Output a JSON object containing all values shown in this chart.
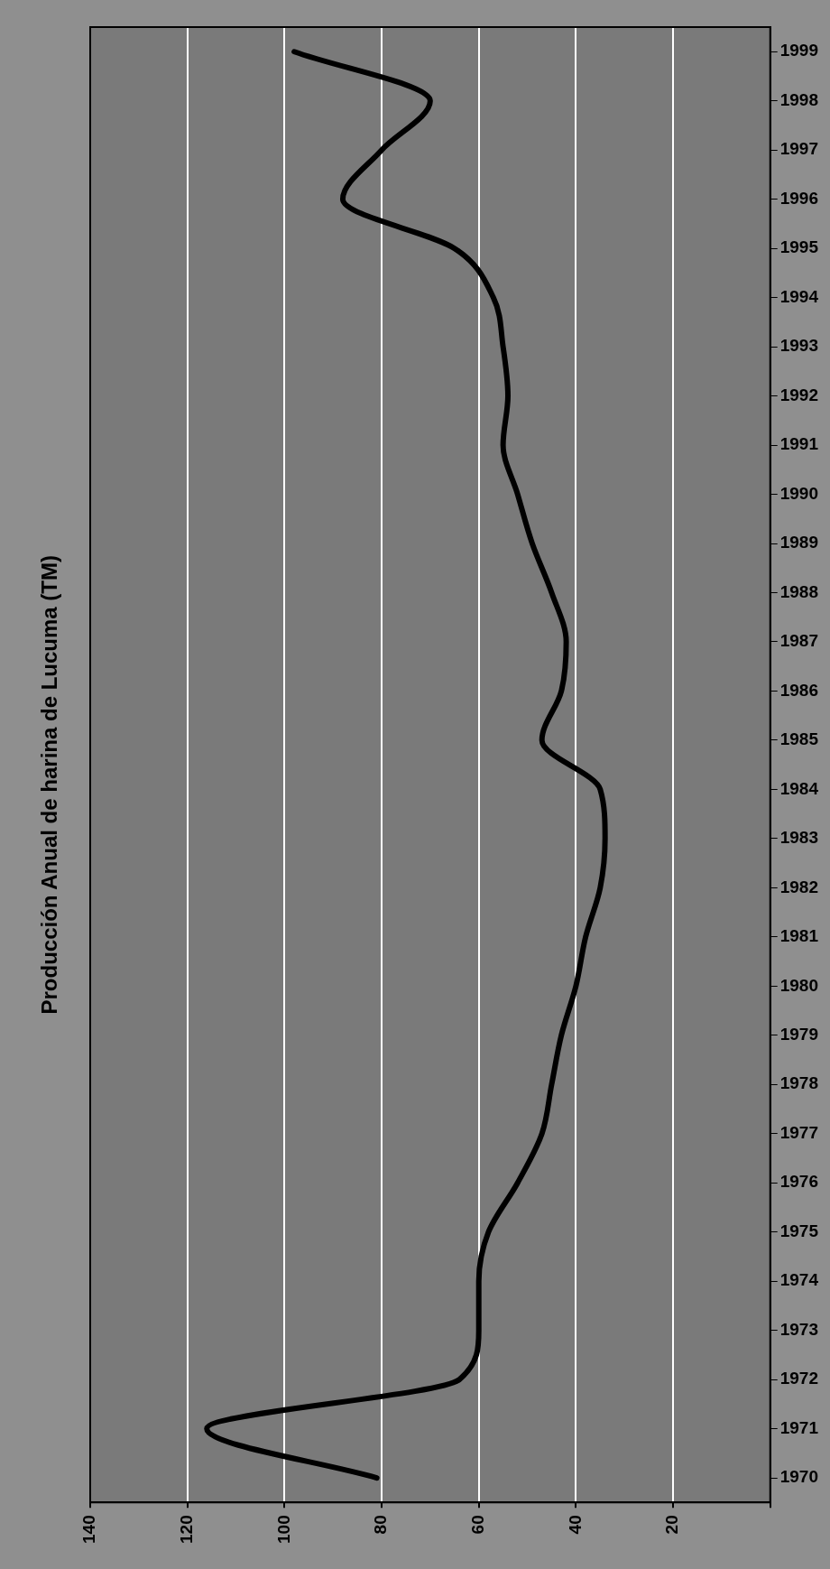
{
  "chart_data": {
    "type": "line",
    "title": "Producción Anual de harina de Lucuma (TM)",
    "orientation": "horizontal",
    "categories": [
      "1999",
      "1998",
      "1997",
      "1996",
      "1995",
      "1994",
      "1993",
      "1992",
      "1991",
      "1990",
      "1989",
      "1988",
      "1987",
      "1986",
      "1985",
      "1984",
      "1983",
      "1982",
      "1981",
      "1980",
      "1979",
      "1978",
      "1977",
      "1976",
      "1975",
      "1974",
      "1973",
      "1972",
      "1971",
      "1970"
    ],
    "series": [
      {
        "color": "#000000",
        "values": [
          98,
          70,
          80,
          88,
          65,
          57,
          55,
          54,
          55,
          52,
          49,
          45,
          42,
          43,
          47,
          35,
          34,
          35,
          38,
          40,
          43,
          45,
          47,
          52,
          58,
          60,
          60,
          64,
          116,
          81
        ]
      }
    ],
    "xlim": [
      140,
      0
    ],
    "xticks": [
      140,
      120,
      100,
      80,
      60,
      40,
      20,
      {
        "value": 0,
        "label": null
      }
    ],
    "grid": "x",
    "legend": false,
    "marker": "none",
    "line_style": "solid"
  }
}
